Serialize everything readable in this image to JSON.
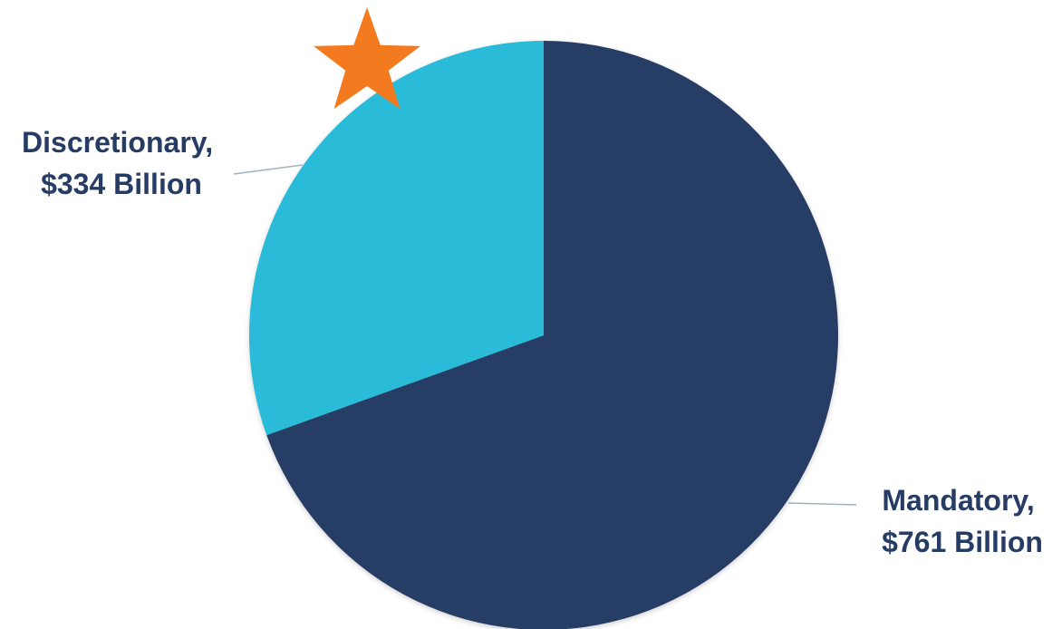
{
  "chart_data": {
    "type": "pie",
    "slices": [
      {
        "name": "Mandatory",
        "value": 761,
        "label_line1": "Mandatory,",
        "label_line2": "$761 Billion",
        "color": "#263c65"
      },
      {
        "name": "Discretionary",
        "value": 334,
        "label_line1": "Discretionary,",
        "label_line2": "$334 Billion",
        "color": "#2bbbd8"
      }
    ],
    "units": "Billion",
    "start_angle_deg": 0,
    "direction": "clockwise",
    "legend": "none",
    "highlight_marker": {
      "shape": "star",
      "color": "#f47a20",
      "slice": "Discretionary"
    }
  }
}
